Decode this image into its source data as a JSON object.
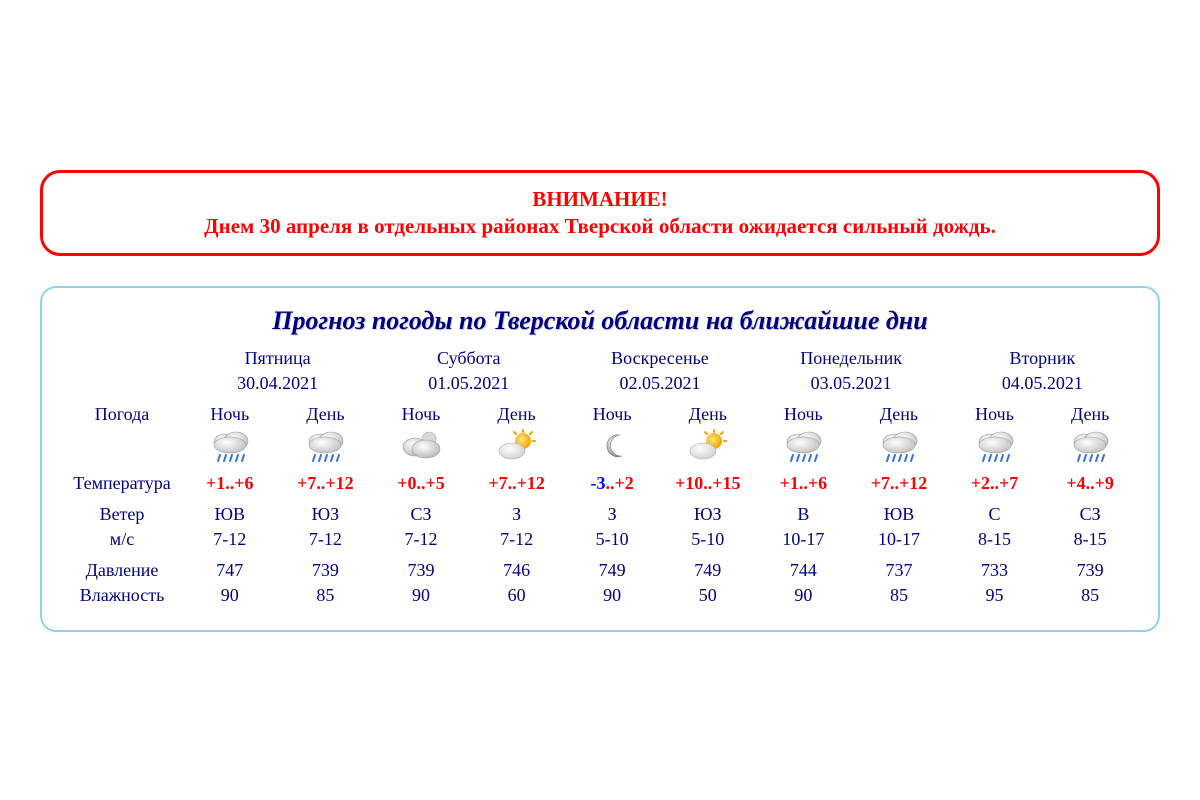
{
  "colors": {
    "alert_border": "#ff0000",
    "alert_text": "#ff0000",
    "forecast_border": "#8ed4e8",
    "text_primary": "#000080",
    "temp_high": "#ff0000",
    "temp_low_pos": "#ff0000",
    "temp_low_neg": "#0000ff",
    "background": "#ffffff"
  },
  "alert": {
    "title": "ВНИМАНИЕ!",
    "text": "Днем 30 апреля в отдельных районах Тверской области ожидается сильный дождь."
  },
  "forecast": {
    "title": "Прогноз погоды по Тверской области на ближайшие дни",
    "row_labels": {
      "weather": "Погода",
      "temperature": "Температура",
      "wind": "Ветер",
      "wind_unit": "м/с",
      "pressure": "Давление",
      "humidity": "Влажность"
    },
    "period_labels": {
      "night": "Ночь",
      "day": "День"
    },
    "days": [
      {
        "name": "Пятница",
        "date": "30.04.2021",
        "night": {
          "icon": "rain",
          "temp_low": "+1",
          "temp_high": "+6",
          "wind_dir": "ЮВ",
          "wind_speed": "7-12",
          "pressure": "747",
          "humidity": "90"
        },
        "day": {
          "icon": "rain",
          "temp_low": "+7",
          "temp_high": "+12",
          "wind_dir": "ЮЗ",
          "wind_speed": "7-12",
          "pressure": "739",
          "humidity": "85"
        }
      },
      {
        "name": "Суббота",
        "date": "01.05.2021",
        "night": {
          "icon": "cloudy-night",
          "temp_low": "+0",
          "temp_high": "+5",
          "wind_dir": "СЗ",
          "wind_speed": "7-12",
          "pressure": "739",
          "humidity": "90"
        },
        "day": {
          "icon": "partly-sunny",
          "temp_low": "+7",
          "temp_high": "+12",
          "wind_dir": "З",
          "wind_speed": "7-12",
          "pressure": "746",
          "humidity": "60"
        }
      },
      {
        "name": "Воскресенье",
        "date": "02.05.2021",
        "night": {
          "icon": "clear-night",
          "temp_low": "-3",
          "temp_high": "+2",
          "wind_dir": "З",
          "wind_speed": "5-10",
          "pressure": "749",
          "humidity": "90"
        },
        "day": {
          "icon": "partly-sunny",
          "temp_low": "+10",
          "temp_high": "+15",
          "wind_dir": "ЮЗ",
          "wind_speed": "5-10",
          "pressure": "749",
          "humidity": "50"
        }
      },
      {
        "name": "Понедельник",
        "date": "03.05.2021",
        "night": {
          "icon": "rain",
          "temp_low": "+1",
          "temp_high": "+6",
          "wind_dir": "В",
          "wind_speed": "10-17",
          "pressure": "744",
          "humidity": "90"
        },
        "day": {
          "icon": "rain",
          "temp_low": "+7",
          "temp_high": "+12",
          "wind_dir": "ЮВ",
          "wind_speed": "10-17",
          "pressure": "737",
          "humidity": "85"
        }
      },
      {
        "name": "Вторник",
        "date": "04.05.2021",
        "night": {
          "icon": "rain",
          "temp_low": "+2",
          "temp_high": "+7",
          "wind_dir": "С",
          "wind_speed": "8-15",
          "pressure": "733",
          "humidity": "95"
        },
        "day": {
          "icon": "rain",
          "temp_low": "+4",
          "temp_high": "+9",
          "wind_dir": "СЗ",
          "wind_speed": "8-15",
          "pressure": "739",
          "humidity": "85"
        }
      }
    ]
  }
}
